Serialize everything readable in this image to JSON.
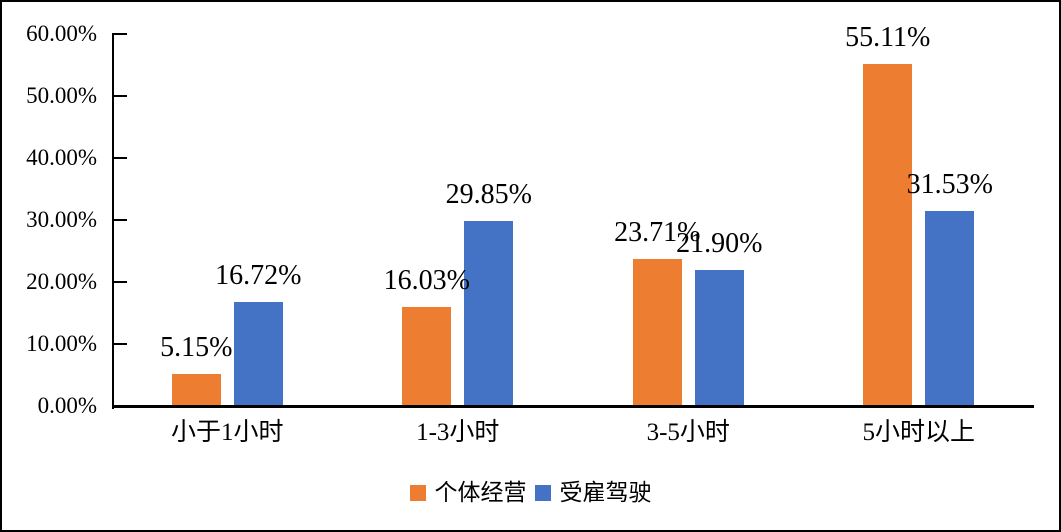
{
  "chart_data": {
    "type": "bar",
    "title": "",
    "xlabel": "",
    "ylabel": "",
    "grid": false,
    "legend_position": "bottom",
    "background_color": "#ffffff",
    "border_color": "#000000",
    "axis_color": "#000000",
    "categories": [
      "小于1小时",
      "1-3小时",
      "3-5小时",
      "5小时以上"
    ],
    "series": [
      {
        "name": "个体经营",
        "color": "#ED7D31",
        "values": [
          5.15,
          16.03,
          23.71,
          55.11
        ],
        "labels": [
          "5.15%",
          "16.03%",
          "23.71%",
          "55.11%"
        ]
      },
      {
        "name": "受雇驾驶",
        "color": "#4472C4",
        "values": [
          16.72,
          29.85,
          21.9,
          31.53
        ],
        "labels": [
          "16.72%",
          "29.85%",
          "21.90%",
          "31.53%"
        ]
      }
    ],
    "y_axis": {
      "min": 0,
      "max": 60,
      "tick_step": 10,
      "tick_labels": [
        "0.00%",
        "10.00%",
        "20.00%",
        "30.00%",
        "40.00%",
        "50.00%",
        "60.00%"
      ]
    }
  }
}
